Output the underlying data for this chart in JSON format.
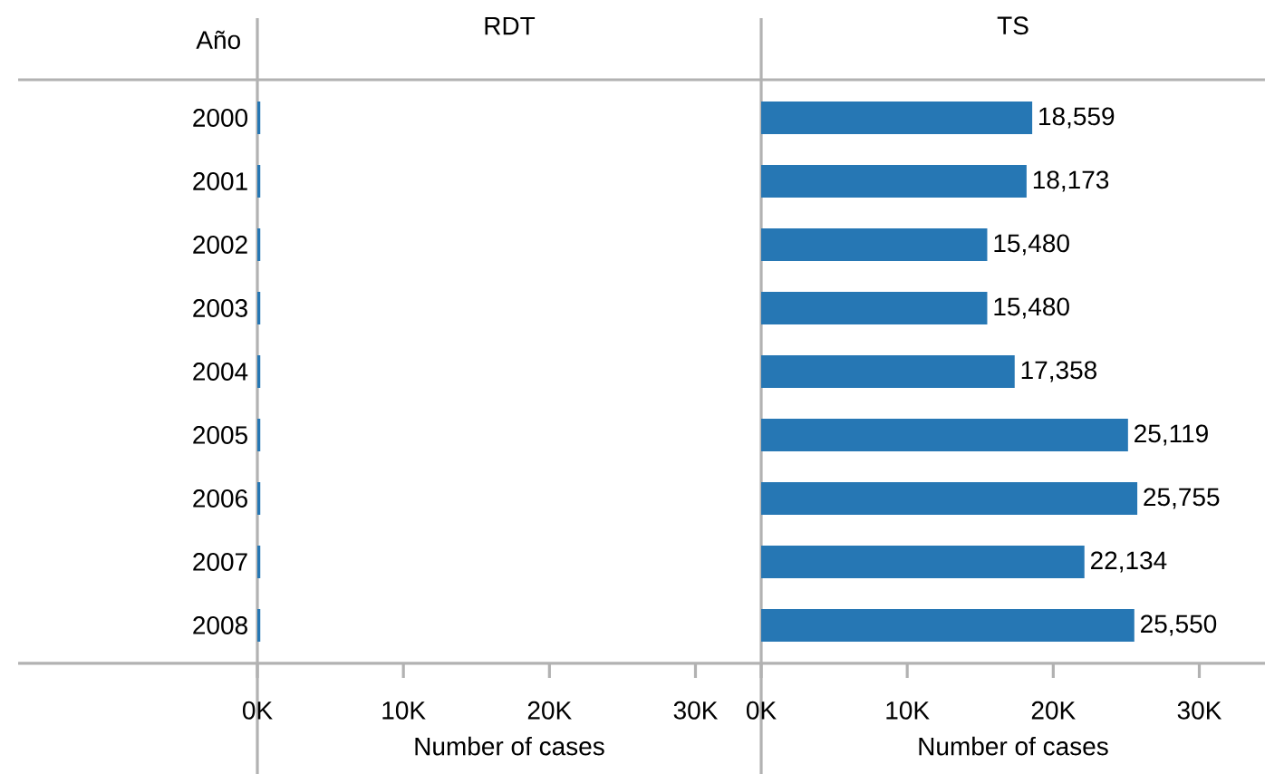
{
  "chart_data": [
    {
      "type": "bar",
      "orientation": "horizontal",
      "title": "RDT",
      "ylabel": "Año",
      "xlabel": "Number of cases",
      "categories": [
        "2000",
        "2001",
        "2002",
        "2003",
        "2004",
        "2005",
        "2006",
        "2007",
        "2008"
      ],
      "values": [
        200,
        200,
        200,
        200,
        200,
        200,
        200,
        200,
        200
      ],
      "color": "#2677b4",
      "xlim": [
        0,
        34500
      ],
      "xticks": [
        {
          "value": 0,
          "label": "0K"
        },
        {
          "value": 10000,
          "label": "10K"
        },
        {
          "value": 20000,
          "label": "20K"
        },
        {
          "value": 30000,
          "label": "30K"
        }
      ]
    },
    {
      "type": "bar",
      "orientation": "horizontal",
      "title": "TS",
      "xlabel": "Number of cases",
      "categories": [
        "2000",
        "2001",
        "2002",
        "2003",
        "2004",
        "2005",
        "2006",
        "2007",
        "2008"
      ],
      "values": [
        18559,
        18173,
        15480,
        15480,
        17358,
        25119,
        25755,
        22134,
        25550
      ],
      "color": "#2677b4",
      "value_labels": [
        "18,559",
        "18,173",
        "15,480",
        "15,480",
        "17,358",
        "25,119",
        "25,755",
        "22,134",
        "25,550"
      ],
      "xlim": [
        0,
        34500
      ],
      "xticks": [
        {
          "value": 0,
          "label": "0K"
        },
        {
          "value": 10000,
          "label": "10K"
        },
        {
          "value": 20000,
          "label": "20K"
        },
        {
          "value": 30000,
          "label": "30K"
        }
      ],
      "tick_labels": "x"
    }
  ]
}
